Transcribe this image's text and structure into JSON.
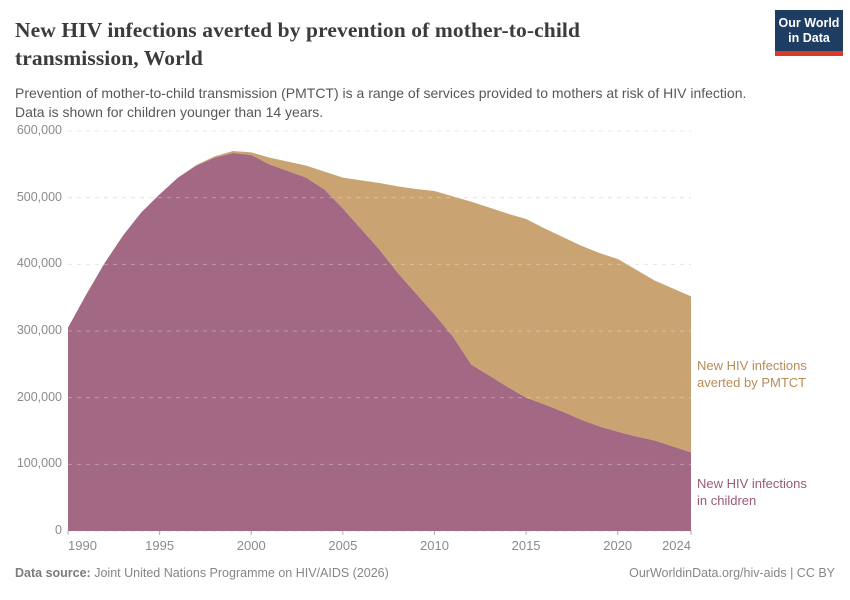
{
  "header": {
    "title": "New HIV infections averted by prevention of mother-to-child transmission, World",
    "title_lines": [
      "New HIV infections averted by prevention of mother-to-child",
      "transmission, World"
    ],
    "subtitle_lines": [
      "Prevention of mother-to-child transmission (PMTCT) is a range of services provided to mothers at risk of HIV infection.",
      "Data is shown for children younger than 14 years."
    ],
    "logo": {
      "line1": "Our World",
      "line2": "in Data",
      "bg": "#1d3d63",
      "accent": "#da3b26"
    }
  },
  "chart_data": {
    "type": "area",
    "stacked": true,
    "title": "New HIV infections averted by prevention of mother-to-child transmission, World",
    "xlabel": "",
    "ylabel": "",
    "xlim": [
      1990,
      2024
    ],
    "ylim": [
      0,
      600000
    ],
    "grid": "dashed-horizontal",
    "legend_position": "right-inline-labels",
    "x": [
      1990,
      1991,
      1992,
      1993,
      1994,
      1995,
      1996,
      1997,
      1998,
      1999,
      2000,
      2001,
      2002,
      2003,
      2004,
      2005,
      2006,
      2007,
      2008,
      2009,
      2010,
      2011,
      2012,
      2013,
      2014,
      2015,
      2016,
      2017,
      2018,
      2019,
      2020,
      2021,
      2022,
      2023,
      2024
    ],
    "series": [
      {
        "name": "New HIV infections in children",
        "label_lines": [
          "New HIV infections",
          "in children"
        ],
        "color": "#a26884",
        "label_color": "#9c5876",
        "values": [
          305000,
          355000,
          402000,
          443000,
          478000,
          505000,
          530000,
          548000,
          560000,
          567000,
          564000,
          550000,
          540000,
          530000,
          512000,
          484000,
          453000,
          422000,
          387000,
          356000,
          325000,
          292000,
          250000,
          233000,
          216000,
          200000,
          190000,
          179000,
          167000,
          157000,
          149000,
          142000,
          136000,
          127000,
          118000
        ]
      },
      {
        "name": "New HIV infections averted by PMTCT",
        "label_lines": [
          "New HIV infections",
          "averted by PMTCT"
        ],
        "color": "#c9a472",
        "label_color": "#b88c57",
        "values": [
          0,
          0,
          0,
          0,
          0,
          0,
          0,
          1000,
          2000,
          3000,
          4000,
          10000,
          14000,
          18000,
          27000,
          46000,
          73000,
          100000,
          130000,
          157000,
          185000,
          210000,
          244000,
          252000,
          260000,
          268000,
          264000,
          262000,
          261000,
          260000,
          259000,
          250000,
          240000,
          237000,
          234000
        ]
      }
    ],
    "yticks": [
      0,
      100000,
      200000,
      300000,
      400000,
      500000,
      600000
    ],
    "ytick_labels": [
      "0",
      "100,000",
      "200,000",
      "300,000",
      "400,000",
      "500,000",
      "600,000"
    ],
    "xticks": [
      1990,
      1995,
      2000,
      2005,
      2010,
      2015,
      2020,
      2024
    ],
    "xtick_labels": [
      "1990",
      "1995",
      "2000",
      "2005",
      "2010",
      "2015",
      "2020",
      "2024"
    ],
    "grid_color": "#dcdcdc",
    "axis_text_color": "#8b8b8b"
  },
  "footer": {
    "source_label": "Data source:",
    "source": "Joint United Nations Programme on HIV/AIDS (2026)",
    "link": "OurWorldinData.org/hiv-aids | CC BY"
  }
}
